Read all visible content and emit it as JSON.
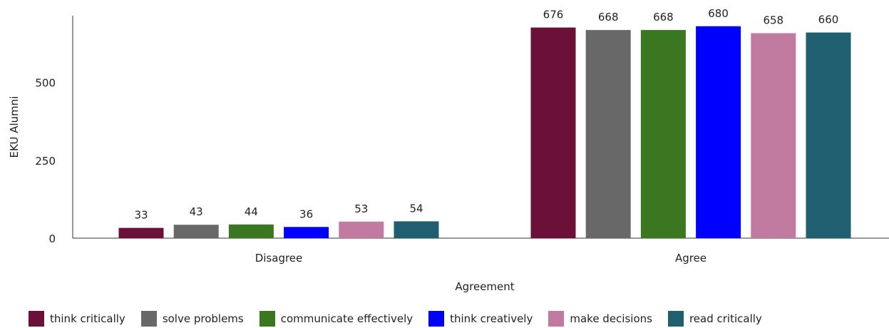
{
  "chart_data": {
    "type": "bar",
    "categories": [
      "Disagree",
      "Agree"
    ],
    "xlabel": "Agreement",
    "ylabel": "EKU Alumni",
    "ylim": [
      0,
      700
    ],
    "yticks": [
      0,
      250,
      500
    ],
    "grid": false,
    "legend_position": "bottom",
    "series": [
      {
        "name": "think critically",
        "color": "#6b1038",
        "values": [
          33,
          676
        ]
      },
      {
        "name": "solve problems",
        "color": "#686868",
        "values": [
          43,
          668
        ]
      },
      {
        "name": "communicate effectively",
        "color": "#3a7720",
        "values": [
          44,
          668
        ]
      },
      {
        "name": "think creatively",
        "color": "#0000ff",
        "values": [
          36,
          680
        ]
      },
      {
        "name": "make decisions",
        "color": "#c27ba0",
        "values": [
          53,
          658
        ]
      },
      {
        "name": "read critically",
        "color": "#1f5f6f",
        "values": [
          54,
          660
        ]
      }
    ]
  }
}
